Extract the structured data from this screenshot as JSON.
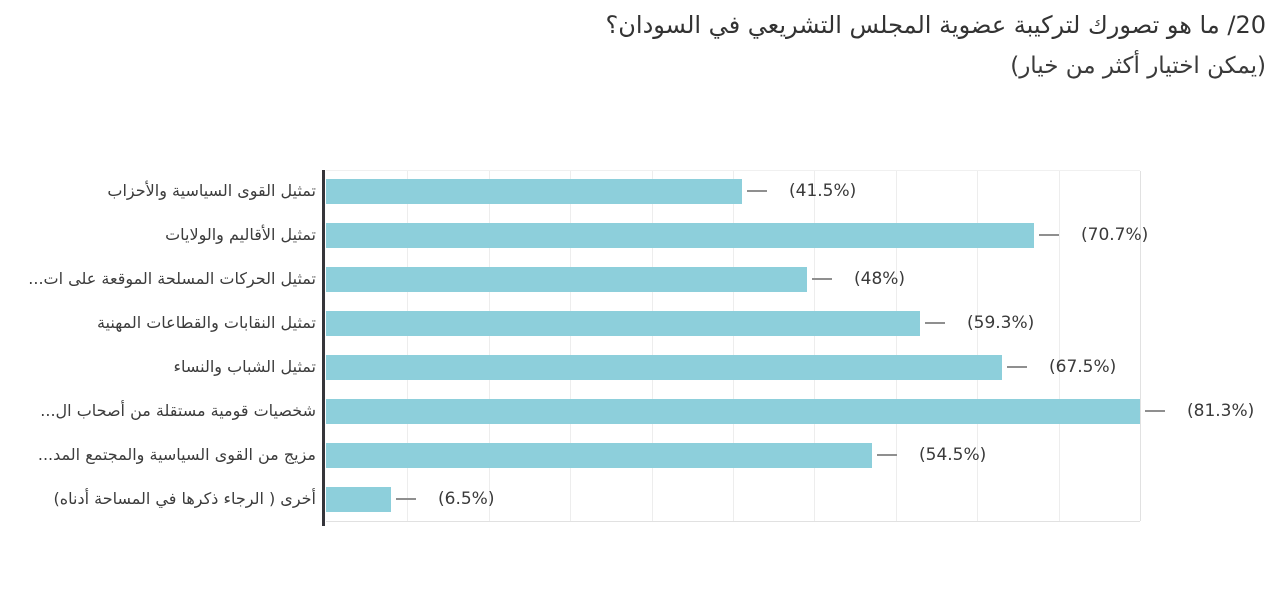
{
  "header": {
    "title": "20/ ما هو تصورك لتركيبة عضوية المجلس التشريعي في السودان؟",
    "subtitle": "(يمكن اختيار أكثر من خيار)"
  },
  "chart_data": {
    "type": "bar",
    "orientation": "horizontal",
    "title": "",
    "categories": [
      "تمثيل القوى السياسية والأحزاب",
      "تمثيل الأقاليم والولايات",
      "تمثيل الحركات المسلحة الموقعة على ات...",
      "تمثيل النقابات والقطاعات المهنية",
      "تمثيل الشباب والنساء",
      "شخصيات قومية مستقلة من أصحاب ال...",
      "مزيج من القوى السياسية والمجتمع المد...",
      "أخرى ( الرجاء ذكرها في المساحة أدناه)"
    ],
    "values": [
      41.5,
      70.7,
      48,
      59.3,
      67.5,
      81.3,
      54.5,
      6.5
    ],
    "value_labels": [
      "(41.5%)",
      "(70.7%)",
      "(48%)",
      "(59.3%)",
      "(67.5%)",
      "(81.3%)",
      "(54.5%)",
      "(6.5%)"
    ],
    "unit": "%",
    "xlim": [
      0,
      81.3
    ],
    "axis_max": 81.3,
    "grid": true,
    "grid_divisions": 10,
    "legend": false,
    "colors": {
      "bar": "#8dcfdb",
      "axis": "#35353a",
      "grid": "#ededed",
      "border": "#e1e1e1",
      "leader": "#8f8f8f",
      "category_text": "#3c3c3c",
      "value_text": "#3a3a3a",
      "title_text": "#333333"
    }
  }
}
